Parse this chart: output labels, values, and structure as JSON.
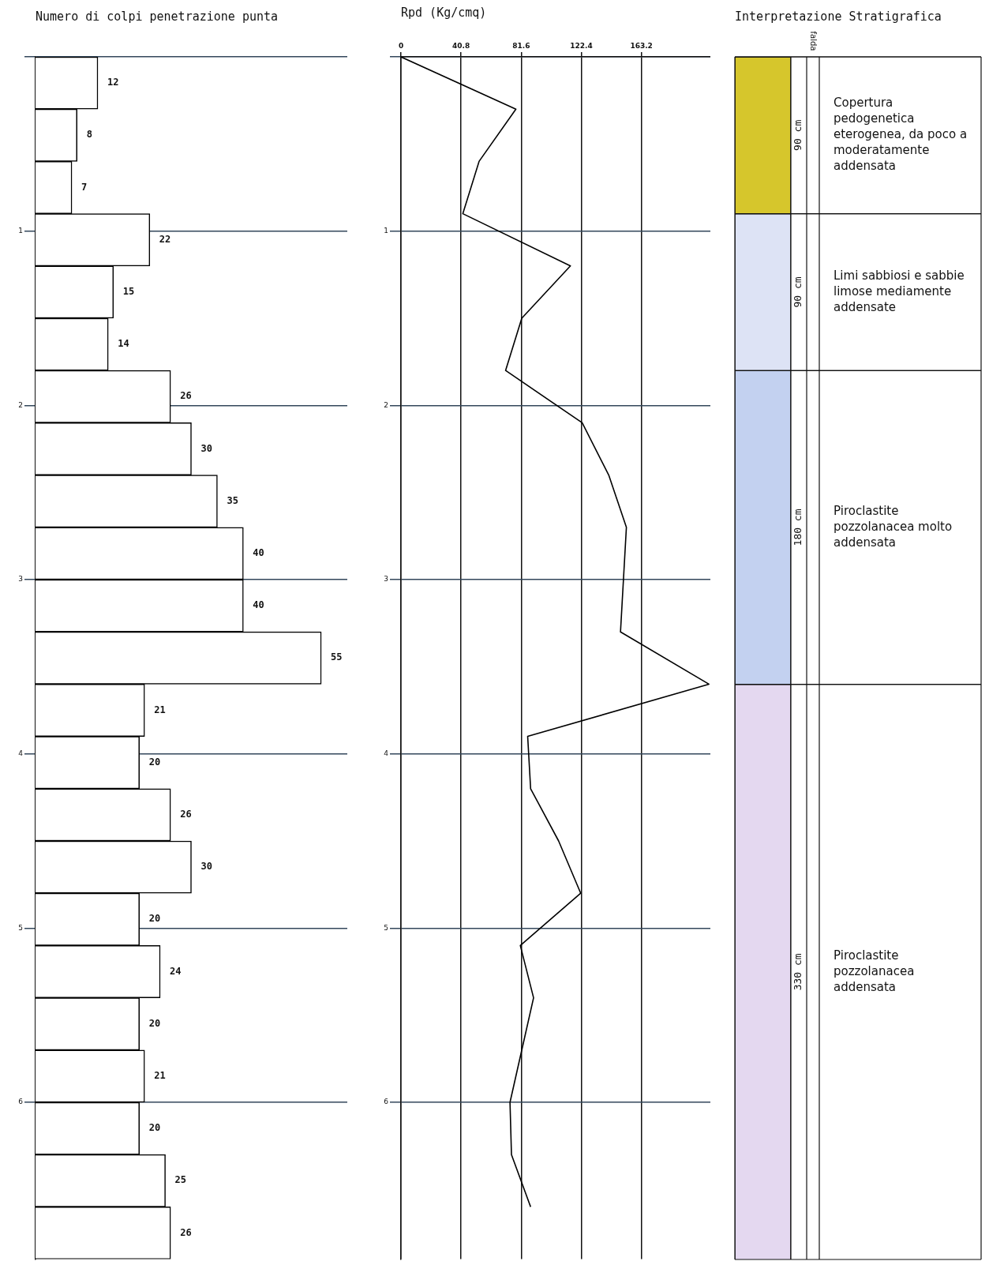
{
  "chart_data": [
    {
      "type": "bar",
      "title": "Numero di colpi penetrazione punta",
      "orientation": "horizontal",
      "x": [
        0.15,
        0.45,
        0.75,
        1.05,
        1.35,
        1.65,
        1.95,
        2.25,
        2.55,
        2.85,
        3.15,
        3.45,
        3.75,
        4.05,
        4.35,
        4.65,
        4.95,
        5.25,
        5.55,
        5.85,
        6.15,
        6.45,
        6.75
      ],
      "values": [
        12,
        8,
        7,
        22,
        15,
        14,
        26,
        30,
        35,
        40,
        40,
        55,
        21,
        20,
        26,
        30,
        20,
        24,
        20,
        21,
        20,
        25,
        26
      ],
      "color": "#ffffff",
      "data_labels": true,
      "ylim": [
        6.9,
        0
      ],
      "yticks": [
        {
          "value": 0,
          "label": null
        },
        1,
        2,
        3,
        4,
        5,
        6
      ],
      "grid": true,
      "tick_labels": "y"
    },
    {
      "type": "line",
      "xlabel": "Rpd (Kg/cmq)",
      "orientation": "horizontal",
      "series": [
        {
          "color": "#000000",
          "x": [
            0,
            0.3,
            0.6,
            0.9,
            1.2,
            1.5,
            1.8,
            2.1,
            2.4,
            2.7,
            3.0,
            3.3,
            3.6,
            3.9,
            4.2,
            4.5,
            4.8,
            5.1,
            5.4,
            5.7,
            6.0,
            6.3,
            6.6
          ],
          "values": [
            0,
            78,
            53,
            42,
            115,
            82,
            71,
            123,
            141,
            153,
            151,
            149,
            209,
            86,
            88,
            107,
            122,
            81,
            90,
            82,
            74,
            75,
            88
          ]
        }
      ],
      "xlim": [
        0,
        210
      ],
      "xticks": [
        0,
        40.8,
        81.6,
        122.4,
        163.2
      ],
      "ylim": [
        6.9,
        0
      ],
      "yticks": [
        {
          "value": 0,
          "label": null
        },
        1,
        2,
        3,
        4,
        5,
        6
      ],
      "grid": true
    },
    {
      "type": "bar",
      "title": "Interpretazione Stratigrafica",
      "stacked": true,
      "categories": [
        null
      ],
      "ylim": [
        0,
        690
      ],
      "tick_labels": false,
      "series": [
        {
          "name": "Piroclastite pozzolanacea addensata",
          "color": "#e4d8f0",
          "values": [
            330
          ],
          "value_labels": [
            "330 cm"
          ]
        },
        {
          "name": "Piroclastite pozzolanacea molto addensata",
          "color": "#c3d1f0",
          "values": [
            180
          ],
          "value_labels": [
            "180 cm"
          ]
        },
        {
          "name": "Limi sabbiosi e sabbie limose mediamente addensate",
          "color": "#dde3f5",
          "values": [
            90
          ],
          "value_labels": [
            "90 cm"
          ]
        },
        {
          "name": "Copertura pedogenetica eterogenea, da poco a moderatamente addensata",
          "color": "#d6c62c",
          "values": [
            90
          ],
          "value_labels": [
            "90 cm"
          ]
        }
      ],
      "annotations": [
        "falda"
      ]
    }
  ]
}
